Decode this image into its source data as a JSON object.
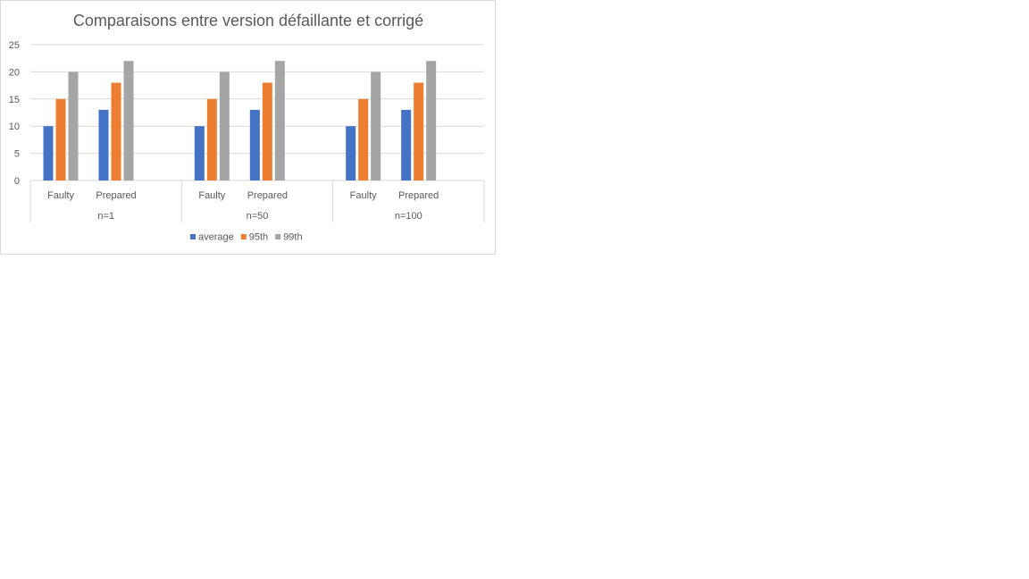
{
  "chart_data": {
    "type": "bar",
    "title": "Comparaisons entre version défaillante et corrigé",
    "xlabel": "",
    "ylabel": "",
    "ylim": [
      0,
      25
    ],
    "yticks": [
      0,
      5,
      10,
      15,
      20,
      25
    ],
    "grid": true,
    "legend_position": "bottom",
    "groups": [
      {
        "label": "n=1",
        "categories": [
          "Faulty",
          "Prepared"
        ]
      },
      {
        "label": "n=50",
        "categories": [
          "Faulty",
          "Prepared"
        ]
      },
      {
        "label": "n=100",
        "categories": [
          "Faulty",
          "Prepared"
        ]
      }
    ],
    "series": [
      {
        "name": "average",
        "color": "#4472c4",
        "values": [
          10,
          13,
          10,
          13,
          10,
          13
        ]
      },
      {
        "name": "95th",
        "color": "#ed7d31",
        "values": [
          15,
          18,
          15,
          18,
          15,
          18
        ]
      },
      {
        "name": "99th",
        "color": "#a5a5a5",
        "values": [
          20,
          22,
          20,
          22,
          20,
          22
        ]
      }
    ]
  }
}
